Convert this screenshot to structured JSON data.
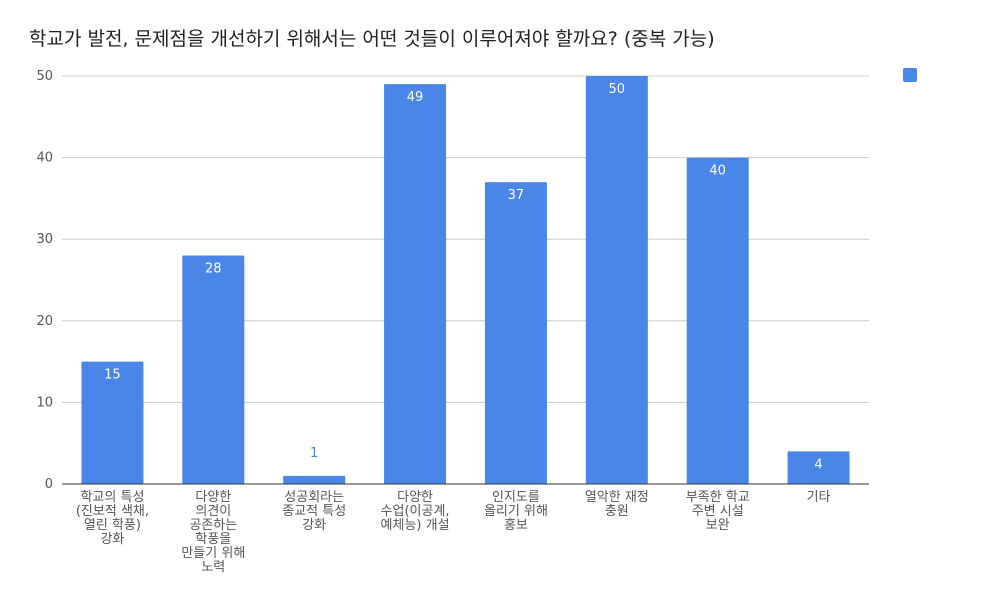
{
  "chart_data": {
    "type": "bar",
    "title": "학교가 발전, 문제점을 개선하기 위해서는 어떤 것들이 이루어져야 할까요? (중복 가능)",
    "categories": [
      [
        "학교의 특성",
        "(진보적 색채,",
        "열린 학풍)",
        "강화"
      ],
      [
        "다양한",
        "의견이",
        "공존하는",
        "학풍을",
        "만들기 위해",
        "노력"
      ],
      [
        "성공회라는",
        "종교적 특성",
        "강화"
      ],
      [
        "다양한",
        "수업(이공계,",
        "예체능) 개설"
      ],
      [
        "인지도를",
        "올리기 위해",
        "홍보"
      ],
      [
        "열악한 재정",
        "충원"
      ],
      [
        "부족한 학교",
        "주변 시설",
        "보완"
      ],
      [
        "기타"
      ]
    ],
    "values": [
      15,
      28,
      1,
      49,
      37,
      50,
      40,
      4
    ],
    "ylim": [
      0,
      50
    ],
    "yticks": [
      0,
      10,
      20,
      30,
      40,
      50
    ],
    "grid": true,
    "legend_position": "top-right",
    "colors": {
      "bar": "#4a86e8",
      "grid": "#cccccc",
      "axis": "#333333",
      "tick_text": "#555555",
      "inside_label": "#ffffff",
      "outside_label": "#4a86e8"
    }
  }
}
